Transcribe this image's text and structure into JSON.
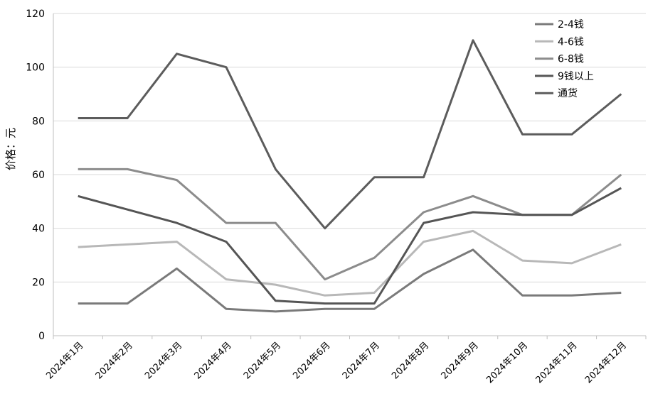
{
  "chart_data": {
    "type": "line",
    "title": "",
    "xlabel": "",
    "ylabel": "价格：元",
    "ylim": [
      0,
      120
    ],
    "yticks": [
      0,
      20,
      40,
      60,
      80,
      100,
      120
    ],
    "grid": true,
    "legend_position": "top-right",
    "categories": [
      "2024年1月",
      "2024年2月",
      "2024年3月",
      "2024年4月",
      "2024年5月",
      "2024年6月",
      "2024年7月",
      "2024年8月",
      "2024年9月",
      "2024年10月",
      "2024年11月",
      "2024年12月"
    ],
    "series": [
      {
        "name": "2-4钱",
        "color": "#7a7a7a",
        "values": [
          12,
          12,
          25,
          10,
          9,
          10,
          10,
          23,
          32,
          15,
          15,
          16
        ]
      },
      {
        "name": "4-6钱",
        "color": "#b8b8b8",
        "values": [
          33,
          34,
          35,
          21,
          19,
          15,
          16,
          35,
          39,
          28,
          27,
          34
        ]
      },
      {
        "name": "6-8钱",
        "color": "#8c8c8c",
        "values": [
          62,
          62,
          58,
          42,
          42,
          21,
          29,
          46,
          52,
          45,
          45,
          60
        ]
      },
      {
        "name": "9钱以上",
        "color": "#555555",
        "values": [
          52,
          47,
          42,
          35,
          13,
          12,
          12,
          42,
          46,
          45,
          45,
          55
        ]
      },
      {
        "name": "通货",
        "color": "#5c5c5c",
        "values": [
          81,
          81,
          105,
          100,
          62,
          40,
          59,
          59,
          110,
          75,
          75,
          90
        ]
      }
    ]
  }
}
